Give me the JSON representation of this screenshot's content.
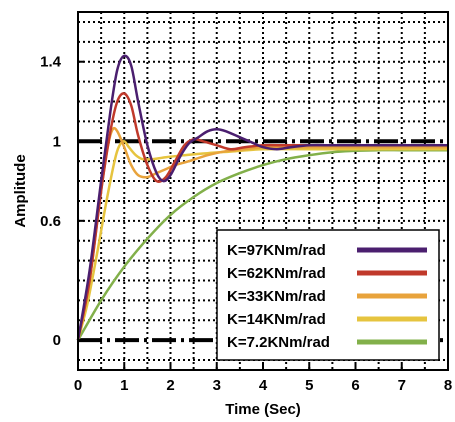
{
  "chart_data": {
    "type": "line",
    "xlabel": "Time (Sec)",
    "ylabel": "Amplitude",
    "xlim": [
      0,
      8
    ],
    "ylim": [
      -0.15,
      1.65
    ],
    "xticks": [
      0,
      1,
      2,
      3,
      4,
      5,
      6,
      7,
      8
    ],
    "xtick_labels": [
      "0",
      "1",
      "2",
      "3",
      "4",
      "5",
      "6",
      "7",
      "8"
    ],
    "yticks": [
      0,
      0.6,
      1,
      1.4
    ],
    "ytick_labels": [
      "0",
      "0.6",
      "1",
      "1.4"
    ],
    "grid": true,
    "legend_position": "bottom-right",
    "reference_lines": [
      0,
      1
    ],
    "series": [
      {
        "name": "K=97KNm/rad",
        "color": "#4b1f6f",
        "x": [
          0,
          0.25,
          0.5,
          0.7,
          0.85,
          1.0,
          1.15,
          1.3,
          1.5,
          1.7,
          1.85,
          2.0,
          2.2,
          2.4,
          2.6,
          2.8,
          3.0,
          3.2,
          3.5,
          3.8,
          4.0,
          4.3,
          4.6,
          5.0,
          5.5,
          6.0,
          7.0,
          8.0
        ],
        "y": [
          0,
          0.35,
          0.8,
          1.15,
          1.36,
          1.43,
          1.38,
          1.2,
          0.98,
          0.84,
          0.8,
          0.83,
          0.92,
          0.99,
          1.02,
          1.05,
          1.06,
          1.05,
          1.02,
          0.99,
          0.97,
          0.96,
          0.97,
          0.98,
          0.98,
          0.98,
          0.98,
          0.98
        ]
      },
      {
        "name": "K=62KNm/rad",
        "color": "#c0392b",
        "x": [
          0,
          0.25,
          0.5,
          0.7,
          0.85,
          1.0,
          1.15,
          1.3,
          1.5,
          1.7,
          1.9,
          2.1,
          2.3,
          2.5,
          2.7,
          3.0,
          3.3,
          3.6,
          4.0,
          4.5,
          5.0,
          6.0,
          7.0,
          8.0
        ],
        "y": [
          0,
          0.3,
          0.75,
          1.05,
          1.2,
          1.24,
          1.18,
          1.03,
          0.88,
          0.8,
          0.82,
          0.9,
          0.98,
          1.01,
          1.0,
          0.98,
          0.96,
          0.97,
          0.98,
          0.98,
          0.98,
          0.98,
          0.98,
          0.98
        ]
      },
      {
        "name": "K=33KNm/rad",
        "color": "#e8a33c",
        "x": [
          0,
          0.25,
          0.5,
          0.65,
          0.75,
          0.85,
          1.0,
          1.15,
          1.3,
          1.5,
          1.7,
          1.9,
          2.1,
          2.4,
          2.8,
          3.2,
          3.6,
          4.0,
          4.5,
          5.0,
          6.0,
          7.0,
          8.0
        ],
        "y": [
          0,
          0.3,
          0.75,
          0.98,
          1.06,
          1.05,
          0.97,
          0.88,
          0.83,
          0.82,
          0.84,
          0.86,
          0.88,
          0.9,
          0.93,
          0.95,
          0.96,
          0.97,
          0.97,
          0.97,
          0.97,
          0.97,
          0.97
        ]
      },
      {
        "name": "K=14KNm/rad",
        "color": "#e6c43f",
        "x": [
          0,
          0.2,
          0.4,
          0.6,
          0.8,
          0.9,
          1.0,
          1.1,
          1.25,
          1.4,
          1.6,
          1.9,
          2.3,
          2.8,
          3.4,
          4.0,
          5.0,
          6.0,
          7.0,
          8.0
        ],
        "y": [
          0,
          0.18,
          0.42,
          0.68,
          0.91,
          0.98,
          1.0,
          0.97,
          0.93,
          0.91,
          0.91,
          0.92,
          0.93,
          0.94,
          0.95,
          0.96,
          0.96,
          0.96,
          0.96,
          0.96
        ]
      },
      {
        "name": "K=7.2KNm/rad",
        "color": "#82b04a",
        "x": [
          0,
          0.5,
          1.0,
          1.5,
          2.0,
          2.5,
          3.0,
          3.5,
          4.0,
          4.5,
          5.0,
          5.5,
          6.0,
          6.5,
          7.0,
          7.5,
          8.0
        ],
        "y": [
          0,
          0.2,
          0.37,
          0.51,
          0.63,
          0.72,
          0.79,
          0.84,
          0.88,
          0.91,
          0.93,
          0.945,
          0.952,
          0.955,
          0.955,
          0.955,
          0.955
        ]
      }
    ]
  }
}
